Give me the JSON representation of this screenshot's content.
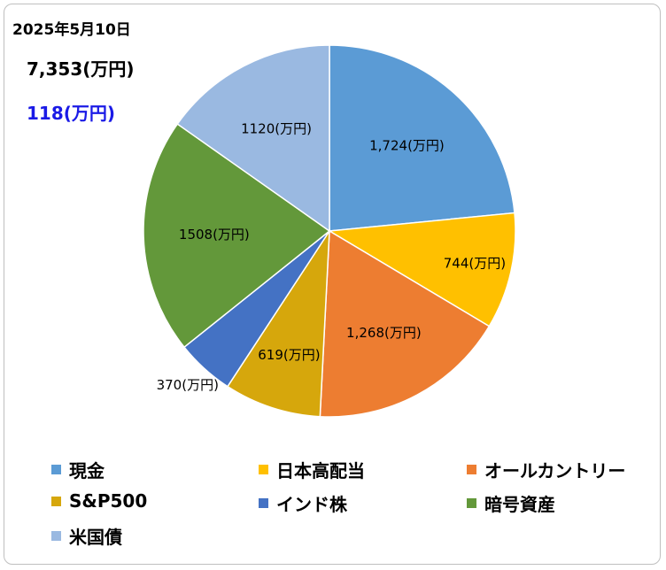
{
  "header": {
    "date": "2025年5月10日",
    "total": "7,353(万円)",
    "change": "118(万円)",
    "change_color": "#1a1ae6"
  },
  "chart_data": {
    "type": "pie",
    "categories": [
      "現金",
      "日本高配当",
      "オールカントリー",
      "S&P500",
      "インド株",
      "暗号資産",
      "米国債"
    ],
    "values": [
      1724,
      744,
      1268,
      619,
      370,
      1508,
      1120
    ],
    "data_labels": [
      "1,724(万円)",
      "744(万円)",
      "1,268(万円)",
      "619(万円)",
      "370(万円)",
      "1508(万円)",
      "1120(万円)"
    ],
    "colors": [
      "#5b9bd5",
      "#ffc000",
      "#ed7d31",
      "#d6a70c",
      "#4472c4",
      "#63983a",
      "#9ab9e1"
    ],
    "legend_position": "bottom"
  }
}
